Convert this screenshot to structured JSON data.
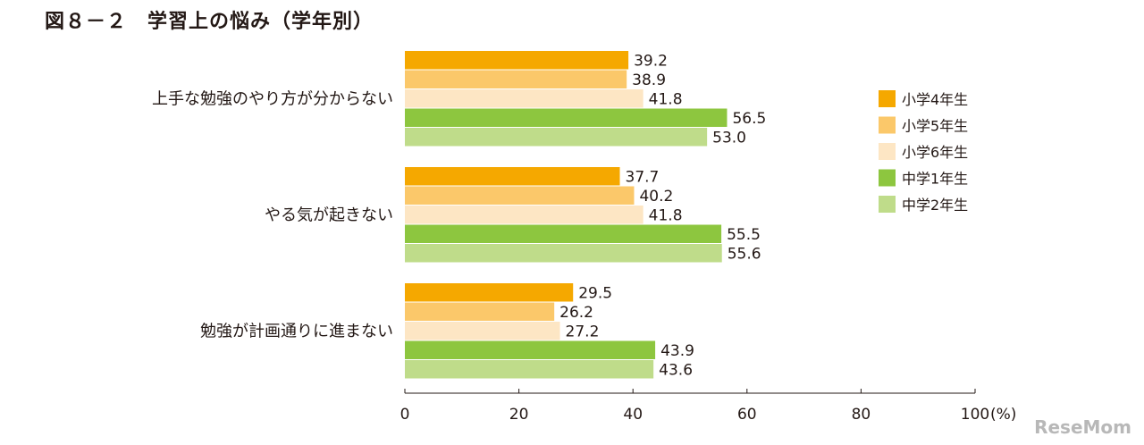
{
  "title": "図８－２　学習上の悩み（学年別）",
  "watermark": "ReseMom",
  "chart_data": {
    "type": "bar",
    "orientation": "horizontal",
    "title": "図８－２　学習上の悩み（学年別）",
    "categories": [
      "上手な勉強のやり方が分からない",
      "やる気が起きない",
      "勉強が計画通りに進まない"
    ],
    "series": [
      {
        "name": "小学4年生",
        "color": "#f5a800",
        "values": [
          39.2,
          37.7,
          29.5
        ]
      },
      {
        "name": "小学5年生",
        "color": "#fbc86a",
        "values": [
          38.9,
          40.2,
          26.2
        ]
      },
      {
        "name": "小学6年生",
        "color": "#fde6c4",
        "values": [
          41.8,
          41.8,
          27.2
        ]
      },
      {
        "name": "中学1年生",
        "color": "#8dc63f",
        "values": [
          56.5,
          55.5,
          43.9
        ]
      },
      {
        "name": "中学2年生",
        "color": "#bfdc8a",
        "values": [
          53.0,
          55.6,
          43.6
        ]
      }
    ],
    "value_labels": [
      [
        "39.2",
        "37.7",
        "29.5"
      ],
      [
        "38.9",
        "40.2",
        "26.2"
      ],
      [
        "41.8",
        "41.8",
        "27.2"
      ],
      [
        "56.5",
        "55.5",
        "43.9"
      ],
      [
        "53.0",
        "55.6",
        "43.6"
      ]
    ],
    "xlim": [
      0,
      100
    ],
    "x_ticks": [
      0,
      20,
      40,
      60,
      80,
      100
    ],
    "x_tick_labels": [
      "0",
      "20",
      "40",
      "60",
      "80",
      "100"
    ],
    "x_unit": "(%)",
    "legend_position": "right",
    "grid": false
  }
}
